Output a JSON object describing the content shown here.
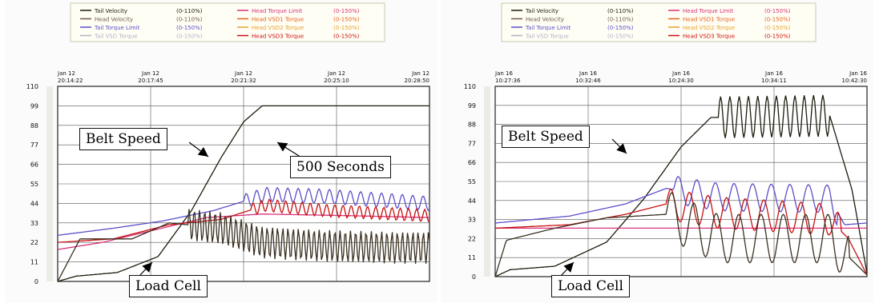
{
  "chart_data": [
    {
      "type": "line",
      "legend": [
        {
          "name": "Tail Velocity",
          "range": "(0-110%)",
          "color": "#1c1c0e"
        },
        {
          "name": "Head Velocity",
          "range": "(0-110%)",
          "color": "#6a5a50"
        },
        {
          "name": "Tail Torque Limit",
          "range": "(0-150%)",
          "color": "#5b4fc8"
        },
        {
          "name": "Tail VSD Torque",
          "range": "(0-150%)",
          "color": "#b0b0c8"
        },
        {
          "name": "Head Torque Limit",
          "range": "(0-150%)",
          "color": "#d8307a"
        },
        {
          "name": "Head VSD1 Torque",
          "range": "(0-150%)",
          "color": "#e8601a"
        },
        {
          "name": "Head VSD2 Torque",
          "range": "(0-150%)",
          "color": "#e8a030"
        },
        {
          "name": "Head VSD3 Torque",
          "range": "(0-150%)",
          "color": "#c81010"
        }
      ],
      "x_ticks": [
        {
          "date": "Jan 12",
          "time": "20:14:22"
        },
        {
          "date": "Jan 12",
          "time": "20:17:45"
        },
        {
          "date": "Jan 12",
          "time": "20:21:32"
        },
        {
          "date": "Jan 12",
          "time": "20:25:10"
        },
        {
          "date": "Jan 12",
          "time": "20:28:50"
        }
      ],
      "y_ticks": [
        "110",
        "99",
        "88",
        "77",
        "66",
        "55",
        "44",
        "33",
        "22",
        "11",
        "0"
      ],
      "ylim": [
        0,
        110
      ],
      "series": [
        {
          "key": "belt_speed",
          "color": "#1c1c0e",
          "points": [
            [
              0,
              0
            ],
            [
              0.05,
              3
            ],
            [
              0.16,
              5
            ],
            [
              0.27,
              14
            ],
            [
              0.36,
              40
            ],
            [
              0.44,
              70
            ],
            [
              0.5,
              90
            ],
            [
              0.55,
              99
            ],
            [
              1,
              99
            ]
          ]
        },
        {
          "key": "tail_torque_limit",
          "color": "#5b4fc8",
          "points": [
            [
              0,
              26
            ],
            [
              0.15,
              30
            ],
            [
              0.28,
              34
            ],
            [
              0.42,
              40
            ],
            [
              0.56,
              49
            ],
            [
              0.72,
              48
            ],
            [
              0.86,
              46
            ],
            [
              1,
              44
            ]
          ],
          "osc": [
            0.5,
            1,
            4,
            0.028
          ]
        },
        {
          "key": "head_torque_limit",
          "color": "#d8307a",
          "points": [
            [
              0,
              18
            ],
            [
              0.12,
              22
            ],
            [
              0.26,
              29
            ],
            [
              0.4,
              36
            ],
            [
              0.55,
              38
            ],
            [
              0.8,
              37
            ],
            [
              1,
              36
            ]
          ]
        },
        {
          "key": "head_vsd_torque",
          "color": "#c81010",
          "points": [
            [
              0,
              22
            ],
            [
              0.15,
              24
            ],
            [
              0.3,
              32
            ],
            [
              0.44,
              35
            ],
            [
              0.56,
              43
            ],
            [
              0.72,
              40
            ],
            [
              1,
              37
            ]
          ],
          "osc": [
            0.52,
            1,
            3.5,
            0.022
          ]
        },
        {
          "key": "load_cell",
          "color": "#3a3020",
          "points": [
            [
              0,
              0
            ],
            [
              0.06,
              24
            ],
            [
              0.2,
              24
            ],
            [
              0.3,
              33
            ],
            [
              0.44,
              30
            ],
            [
              0.55,
              22
            ],
            [
              0.72,
              20
            ],
            [
              0.9,
              19
            ],
            [
              1,
              19
            ]
          ],
          "osc": [
            0.35,
            1,
            9,
            0.014
          ]
        }
      ],
      "annotations": [
        "Belt Speed",
        "500 Seconds",
        "Load Cell"
      ]
    },
    {
      "type": "line",
      "legend": [
        {
          "name": "Tail Velocity",
          "range": "(0-110%)",
          "color": "#1c1c0e"
        },
        {
          "name": "Head Velocity",
          "range": "(0-110%)",
          "color": "#6a5a50"
        },
        {
          "name": "Tail Torque Limit",
          "range": "(0-150%)",
          "color": "#5b4fc8"
        },
        {
          "name": "Tail VSD Torque",
          "range": "(0-150%)",
          "color": "#b0b0c8"
        },
        {
          "name": "Head Torque Limit",
          "range": "(0-150%)",
          "color": "#d8307a"
        },
        {
          "name": "Head VSD1 Torque",
          "range": "(0-150%)",
          "color": "#e8601a"
        },
        {
          "name": "Head VSD2 Torque",
          "range": "(0-150%)",
          "color": "#e8a030"
        },
        {
          "name": "Head VSD3 Torque",
          "range": "(0-150%)",
          "color": "#c81010"
        }
      ],
      "x_ticks": [
        {
          "date": "Jan 16",
          "time": "10:27:36"
        },
        {
          "date": "Jan 16",
          "time": "10:32:46"
        },
        {
          "date": "Jan 16",
          "time": "10:24:30"
        },
        {
          "date": "Jan 16",
          "time": "10:34:11"
        },
        {
          "date": "Jan 16",
          "time": "10:42:30"
        }
      ],
      "y_ticks": [
        "110",
        "99",
        "88",
        "77",
        "66",
        "55",
        "44",
        "33",
        "22",
        "11",
        "0"
      ],
      "ylim": [
        0,
        110
      ],
      "series": [
        {
          "key": "belt_speed",
          "color": "#1c1c0e",
          "points": [
            [
              0,
              0
            ],
            [
              0.04,
              4
            ],
            [
              0.16,
              6
            ],
            [
              0.3,
              20
            ],
            [
              0.4,
              45
            ],
            [
              0.5,
              75
            ],
            [
              0.58,
              92
            ],
            [
              0.9,
              93
            ],
            [
              0.96,
              50
            ],
            [
              1,
              2
            ]
          ],
          "osc": [
            0.6,
            0.9,
            12,
            0.025
          ]
        },
        {
          "key": "tail_torque_limit",
          "color": "#5b4fc8",
          "points": [
            [
              0,
              31
            ],
            [
              0.2,
              35
            ],
            [
              0.35,
              42
            ],
            [
              0.46,
              51
            ],
            [
              0.6,
              46
            ],
            [
              0.9,
              45
            ],
            [
              0.94,
              30
            ],
            [
              1,
              31
            ]
          ],
          "osc": [
            0.48,
            0.92,
            8,
            0.05
          ]
        },
        {
          "key": "head_torque_limit",
          "color": "#d8307a",
          "points": [
            [
              0,
              28
            ],
            [
              1,
              28
            ]
          ]
        },
        {
          "key": "head_vsd_torque",
          "color": "#c81010",
          "points": [
            [
              0,
              28
            ],
            [
              0.2,
              30
            ],
            [
              0.35,
              36
            ],
            [
              0.46,
              42
            ],
            [
              0.6,
              37
            ],
            [
              0.9,
              33
            ],
            [
              0.95,
              22
            ],
            [
              1,
              1
            ]
          ],
          "osc": [
            0.46,
            0.93,
            9,
            0.05
          ]
        },
        {
          "key": "load_cell",
          "color": "#3a3020",
          "points": [
            [
              0,
              0
            ],
            [
              0.03,
              21
            ],
            [
              0.16,
              28
            ],
            [
              0.3,
              34
            ],
            [
              0.46,
              36
            ],
            [
              0.6,
              22
            ],
            [
              0.9,
              22
            ],
            [
              1,
              1
            ]
          ],
          "osc": [
            0.46,
            0.95,
            14,
            0.06
          ]
        }
      ],
      "annotations": [
        "Belt Speed",
        "Load Cell"
      ]
    }
  ]
}
